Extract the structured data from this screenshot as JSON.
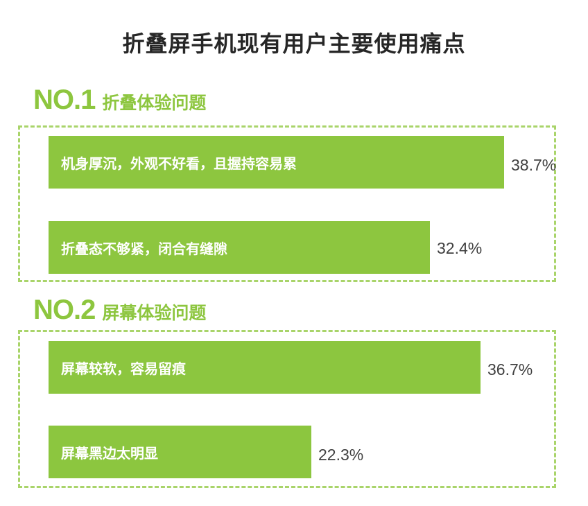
{
  "title": "折叠屏手机现有用户主要使用痛点",
  "colors": {
    "accent": "#8dc63f",
    "bar": "#8dc63f",
    "text": "#404040"
  },
  "chart_data": {
    "type": "bar",
    "orientation": "horizontal",
    "title": "折叠屏手机现有用户主要使用痛点",
    "unit": "%",
    "groups": [
      {
        "rank": "NO.1",
        "name": "折叠体验问题",
        "categories": [
          "机身厚沉，外观不好看，且握持容易累",
          "折叠态不够紧，闭合有缝隙"
        ],
        "values": [
          38.7,
          32.4
        ],
        "labels": [
          "38.7%",
          "32.4%"
        ]
      },
      {
        "rank": "NO.2",
        "name": "屏幕体验问题",
        "categories": [
          "屏幕较软，容易留痕",
          "屏幕黑边太明显"
        ],
        "values": [
          36.7,
          22.3
        ],
        "labels": [
          "36.7%",
          "22.3%"
        ]
      }
    ]
  }
}
